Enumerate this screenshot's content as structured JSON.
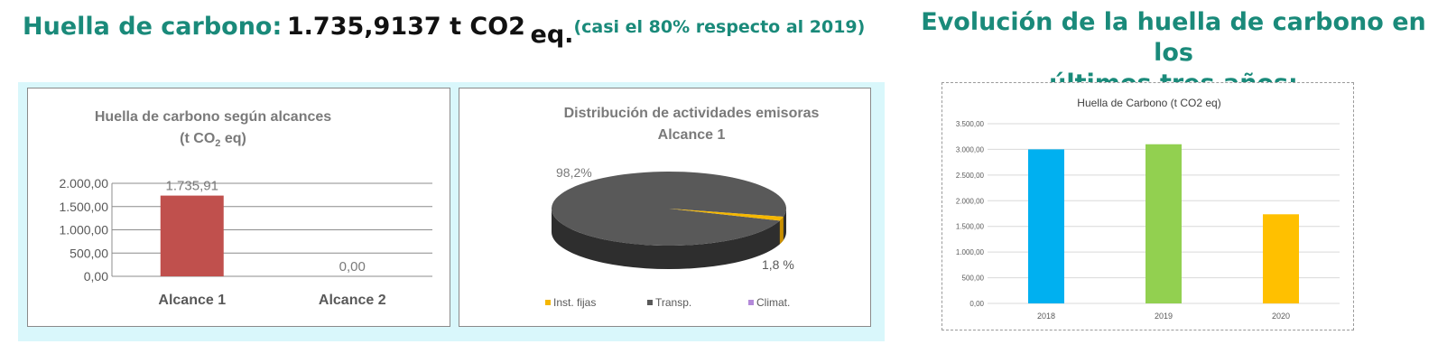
{
  "headline": {
    "label": "Huella de carbono:",
    "value": "1.735,9137 t CO2",
    "unit_suffix": "eq.",
    "note": "(casi el 80% respecto al 2019)"
  },
  "right_title": {
    "line1": "Evolución de la huella de carbono en los",
    "line2": "últimos tres años:"
  },
  "colors": {
    "accent": "#1a8a7a",
    "panel_background": "#d9f7fb",
    "bar_alcance": "#c0504d",
    "pie_dark": "#595959",
    "pie_inst_fijas": "#f5b700",
    "pie_climat": "#b389d9",
    "bar_2018": "#00b0f0",
    "bar_2019": "#92d050",
    "bar_2020": "#ffc000"
  },
  "chart_data": [
    {
      "type": "bar",
      "title_line1": "Huella de carbono según alcances",
      "title_line2": "(t CO",
      "title_sub": "2",
      "title_line2_end": " eq)",
      "categories": [
        "Alcance 1",
        "Alcance 2"
      ],
      "values": [
        1735.91,
        0.0
      ],
      "data_labels": [
        "1.735,91",
        "0,00"
      ],
      "ylim": [
        0,
        2000
      ],
      "yticks": [
        0,
        500,
        1000,
        1500,
        2000
      ],
      "ytick_labels": [
        "0,00",
        "500,00",
        "1.000,00",
        "1.500,00",
        "2.000,00"
      ],
      "grid": true,
      "legend": "none"
    },
    {
      "type": "pie",
      "title_line1": "Distribución de actividades emisoras",
      "title_line2": "Alcance 1",
      "slices": [
        {
          "label": "Inst. fijas",
          "value": 1.8,
          "data_label": "1,8 %"
        },
        {
          "label": "Transp.",
          "value": 98.2,
          "data_label": "98,2%"
        },
        {
          "label": "Climat.",
          "value": 0.0,
          "data_label": ""
        }
      ],
      "legend": "bottom"
    },
    {
      "type": "bar",
      "title": "Huella de Carbono (t CO2 eq)",
      "categories": [
        "2018",
        "2019",
        "2020"
      ],
      "values": [
        3000,
        3100,
        1735.91
      ],
      "ylim": [
        0,
        3500
      ],
      "yticks": [
        0,
        500,
        1000,
        1500,
        2000,
        2500,
        3000,
        3500
      ],
      "ytick_labels": [
        "0,00",
        "500,00",
        "1.000,00",
        "1.500,00",
        "2.000,00",
        "2.500,00",
        "3.000,00",
        "3.500,00"
      ],
      "grid": true,
      "legend": "none"
    }
  ]
}
